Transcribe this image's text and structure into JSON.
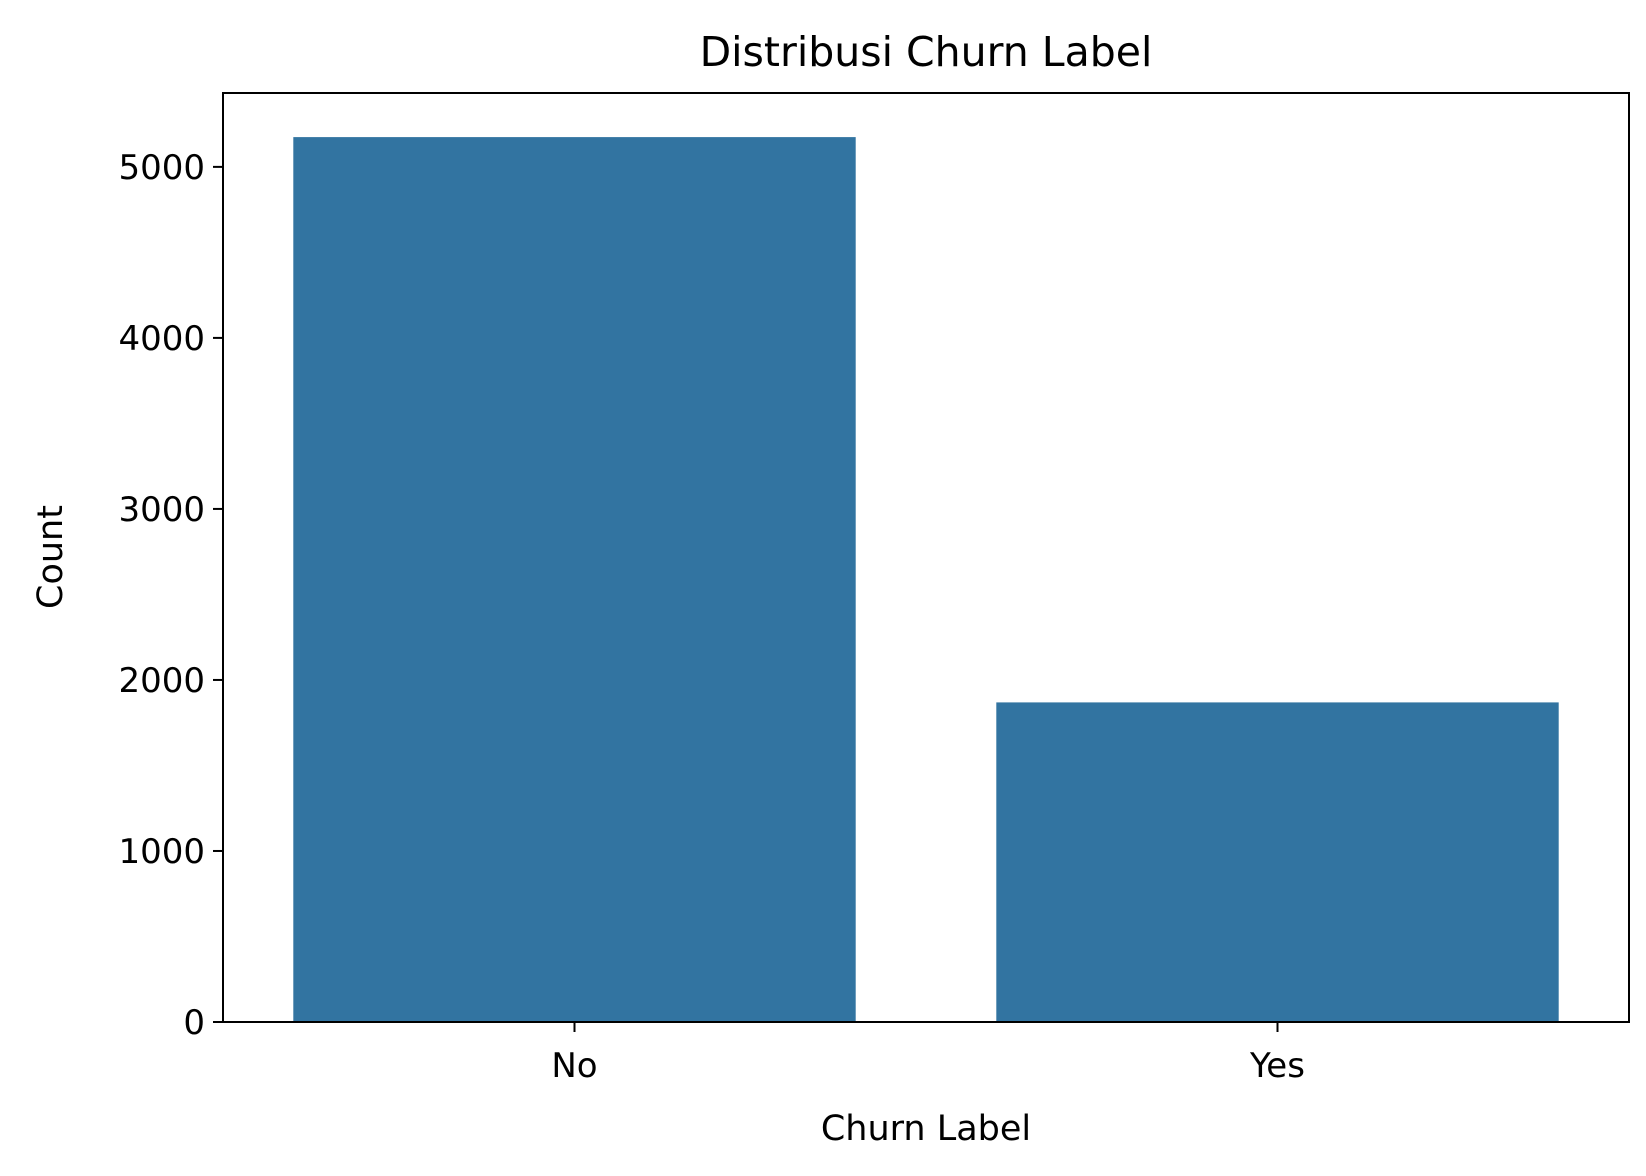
{
  "chart_data": {
    "type": "bar",
    "title": "Distribusi Churn Label",
    "xlabel": "Churn Label",
    "ylabel": "Count",
    "categories": [
      "No",
      "Yes"
    ],
    "values": [
      5174,
      1869
    ],
    "ylim": [
      0,
      5432
    ],
    "yticks": [
      0,
      1000,
      2000,
      3000,
      4000,
      5000
    ],
    "yticklabels": [
      "0",
      "1000",
      "2000",
      "3000",
      "4000",
      "5000"
    ],
    "bar_color": "#3274a1",
    "grid": false,
    "legend": "none"
  }
}
